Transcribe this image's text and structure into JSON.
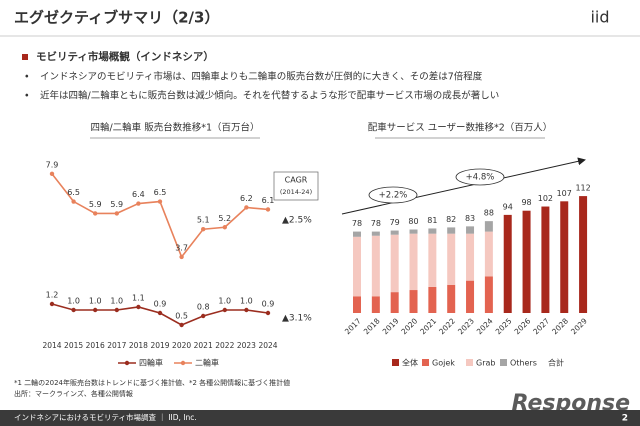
{
  "header": {
    "title": "エグゼクティブサマリ（2/3）",
    "logo": "iid"
  },
  "section": "モビリティ市場概観（インドネシア）",
  "bullets": [
    "インドネシアのモビリティ市場は、四輪車よりも二輪車の販売台数が圧倒的に大きく、その差は7倍程度",
    "近年は四輪/二輪車ともに販売台数は減少傾向。それを代替するような形で配車サービス市場の成長が著しい"
  ],
  "footnotes": [
    "*1 二輪の2024年販売台数はトレンドに基づく推計値、*2 各種公開情報に基づく推計値",
    "出所：マークラインズ、各種公開情報"
  ],
  "footer": {
    "text": "インドネシアにおけるモビリティ市場調査 ｜ IID, Inc.",
    "page": "2"
  },
  "watermark": "Response",
  "chart_data": [
    {
      "type": "line",
      "title": "四輪/二輪車 販売台数推移*1（百万台）",
      "categories": [
        "2014",
        "2015",
        "2016",
        "2017",
        "2018",
        "2019",
        "2020",
        "2021",
        "2022",
        "2023",
        "2024"
      ],
      "ylim": [
        -0.5,
        8.6
      ],
      "y2lim": [
        0,
        6
      ],
      "series": [
        {
          "name": "四輪車",
          "color": "#9b2d1f",
          "axis": "y2",
          "values": [
            1.2,
            1.0,
            1.0,
            1.0,
            1.1,
            0.9,
            0.5,
            0.8,
            1.0,
            1.0,
            0.9
          ],
          "value_labels": [
            "1.2",
            "1.0",
            "1.0",
            "1.0",
            "1.1",
            "0.9",
            "0.5",
            "0.8",
            "1.0",
            "1.0",
            "0.9"
          ]
        },
        {
          "name": "二輪車",
          "color": "#e8825c",
          "values": [
            7.9,
            6.5,
            5.9,
            5.9,
            6.4,
            6.5,
            3.7,
            5.1,
            5.2,
            6.2,
            6.1
          ],
          "value_labels": [
            "7.9",
            "6.5",
            "5.9",
            "5.9",
            "6.4",
            "6.5",
            "3.7",
            "5.1",
            "5.2",
            "6.2",
            "6.1"
          ]
        }
      ],
      "annotations": [
        "CAGR",
        "(2014-24)",
        "▲2.5%",
        "▲3.1%"
      ]
    },
    {
      "type": "bar",
      "title": "配車サービス ユーザー数推移*2（百万人）",
      "categories": [
        "2017",
        "2018",
        "2019",
        "2020",
        "2021",
        "2022",
        "2023",
        "2024",
        "2025",
        "2026",
        "2027",
        "2028",
        "2029"
      ],
      "ylim": [
        0,
        137
      ],
      "series": [
        {
          "name": "全体",
          "color": "#a8281c",
          "values": [
            null,
            null,
            null,
            null,
            null,
            null,
            null,
            null,
            94,
            98,
            102,
            107,
            112
          ]
        },
        {
          "name": "Gojek",
          "color": "#e36350",
          "values": [
            16,
            16,
            20,
            22,
            25,
            27,
            31,
            35,
            null,
            null,
            null,
            null,
            null
          ]
        },
        {
          "name": "Grab",
          "color": "#f5c8c0",
          "values": [
            57,
            58,
            55,
            54,
            51,
            49,
            45,
            43,
            null,
            null,
            null,
            null,
            null
          ]
        },
        {
          "name": "Others",
          "color": "#a5a5a5",
          "values": [
            5,
            4,
            4,
            4,
            5,
            6,
            7,
            10,
            null,
            null,
            null,
            null,
            null
          ]
        }
      ],
      "totals": [
        78,
        78,
        79,
        80,
        81,
        82,
        83,
        88,
        94,
        98,
        102,
        107,
        112
      ],
      "total_label": "合計",
      "annotations": [
        "+2.2%",
        "+4.8%"
      ]
    }
  ]
}
